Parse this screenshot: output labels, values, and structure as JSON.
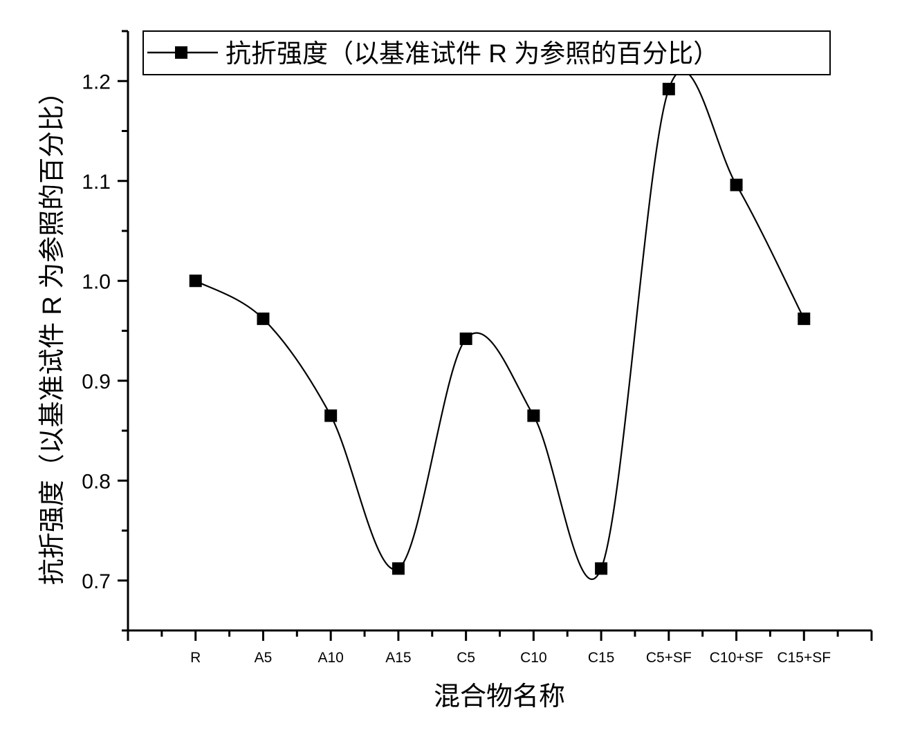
{
  "chart_data": {
    "type": "line",
    "title": "",
    "xlabel": "混合物名称",
    "ylabel": "抗折强度（以基准试件 R 为参照的百分比）",
    "categories": [
      "R",
      "A5",
      "A10",
      "A15",
      "C5",
      "C10",
      "C15",
      "C5+SF",
      "C10+SF",
      "C15+SF"
    ],
    "series": [
      {
        "name": "抗折强度（以基准试件 R 为参照的百分比）",
        "values": [
          1.0,
          0.962,
          0.865,
          0.712,
          0.942,
          0.865,
          0.712,
          1.192,
          1.096,
          0.962
        ],
        "color": "#000000",
        "marker": "square",
        "line": "spline"
      }
    ],
    "xlim": [
      0,
      11
    ],
    "ylim": [
      0.65,
      1.25
    ],
    "yticks": [
      "0.7",
      "0.8",
      "0.9",
      "1.0",
      "1.1",
      "1.2"
    ],
    "grid": false,
    "legend_position": "top"
  }
}
